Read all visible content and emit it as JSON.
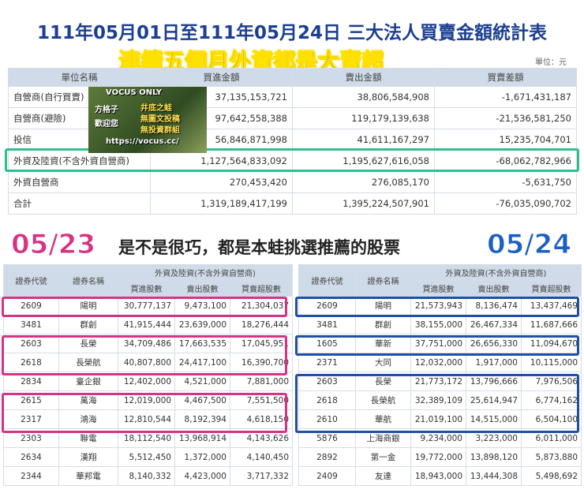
{
  "header": {
    "title": "111年05月01日至111年05月24日 三大法人買賣金額統計表",
    "subtitle": "連續五個月外資都是大賣超",
    "unit": "單位：元"
  },
  "summary_table": {
    "columns": [
      "單位名稱",
      "買進金額",
      "賣出金額",
      "買賣差額"
    ],
    "rows": [
      [
        "自營商(自行買賣)",
        "37,135,153,721",
        "38,806,584,908",
        "-1,671,431,187"
      ],
      [
        "自營商(避險)",
        "97,642,558,388",
        "119,179,139,638",
        "-21,536,581,250"
      ],
      [
        "投信",
        "56,846,871,998",
        "41,611,167,297",
        "15,235,704,701"
      ],
      [
        "外資及陸資(不含外資自營商)",
        "1,127,564,833,092",
        "1,195,627,616,058",
        "-68,062,782,966"
      ],
      [
        "外資自營商",
        "270,453,420",
        "276,085,170",
        "-5,631,750"
      ],
      [
        "合計",
        "1,319,189,417,199",
        "1,395,224,507,901",
        "-76,035,090,702"
      ]
    ]
  },
  "watermark": {
    "lines": [
      "VOCUS ONLY",
      "方格子",
      "歡迎您",
      "井底之蛙",
      "無圖文投稿",
      "無投資群組",
      "https://vocus.cc/"
    ]
  },
  "banner": {
    "left_date": "05/23",
    "caption": "是不是很巧，都是本蛙挑選推薦的股票",
    "right_date": "05/24"
  },
  "stock_tables": [
    {
      "columns": [
        "證券代號",
        "證券名稱"
      ],
      "group_header": "外資及陸資(不含外資自營商)",
      "subcolumns": [
        "買進股數",
        "賣出股數",
        "買賣超股數"
      ],
      "rows": [
        [
          "2609",
          "陽明",
          "30,777,137",
          "9,473,100",
          "21,304,037"
        ],
        [
          "3481",
          "群創",
          "41,915,444",
          "23,639,000",
          "18,276,444"
        ],
        [
          "2603",
          "長榮",
          "34,709,486",
          "17,663,535",
          "17,045,951"
        ],
        [
          "2618",
          "長榮航",
          "40,807,800",
          "24,417,100",
          "16,390,700"
        ],
        [
          "2834",
          "臺企銀",
          "12,402,000",
          "4,521,000",
          "7,881,000"
        ],
        [
          "2615",
          "萬海",
          "12,019,000",
          "4,467,500",
          "7,551,500"
        ],
        [
          "2317",
          "鴻海",
          "12,810,544",
          "8,192,394",
          "4,618,150"
        ],
        [
          "2303",
          "聯電",
          "18,112,540",
          "13,968,914",
          "4,143,626"
        ],
        [
          "2634",
          "漢翔",
          "5,512,450",
          "1,372,000",
          "4,140,450"
        ],
        [
          "2344",
          "華邦電",
          "8,140,332",
          "4,423,000",
          "3,717,332"
        ]
      ]
    },
    {
      "columns": [
        "證券代號",
        "證券名稱"
      ],
      "group_header": "外資及陸資(不含外資自營商)",
      "subcolumns": [
        "買進股數",
        "賣出股數",
        "買賣超股數"
      ],
      "rows": [
        [
          "2609",
          "陽明",
          "21,573,943",
          "8,136,474",
          "13,437,469"
        ],
        [
          "3481",
          "群創",
          "38,155,000",
          "26,467,334",
          "11,687,666"
        ],
        [
          "1605",
          "華新",
          "37,751,000",
          "26,656,330",
          "11,094,670"
        ],
        [
          "2371",
          "大同",
          "12,032,000",
          "1,917,000",
          "10,115,000"
        ],
        [
          "2603",
          "長榮",
          "21,773,172",
          "13,796,666",
          "7,976,506"
        ],
        [
          "2618",
          "長榮航",
          "32,389,109",
          "25,614,947",
          "6,774,162"
        ],
        [
          "2610",
          "華航",
          "21,019,100",
          "14,515,000",
          "6,504,100"
        ],
        [
          "5876",
          "上海商銀",
          "9,234,000",
          "3,223,000",
          "6,011,000"
        ],
        [
          "2892",
          "第一金",
          "19,772,000",
          "13,898,120",
          "5,873,880"
        ],
        [
          "2409",
          "友達",
          "18,943,000",
          "13,444,308",
          "5,498,692"
        ]
      ]
    }
  ]
}
